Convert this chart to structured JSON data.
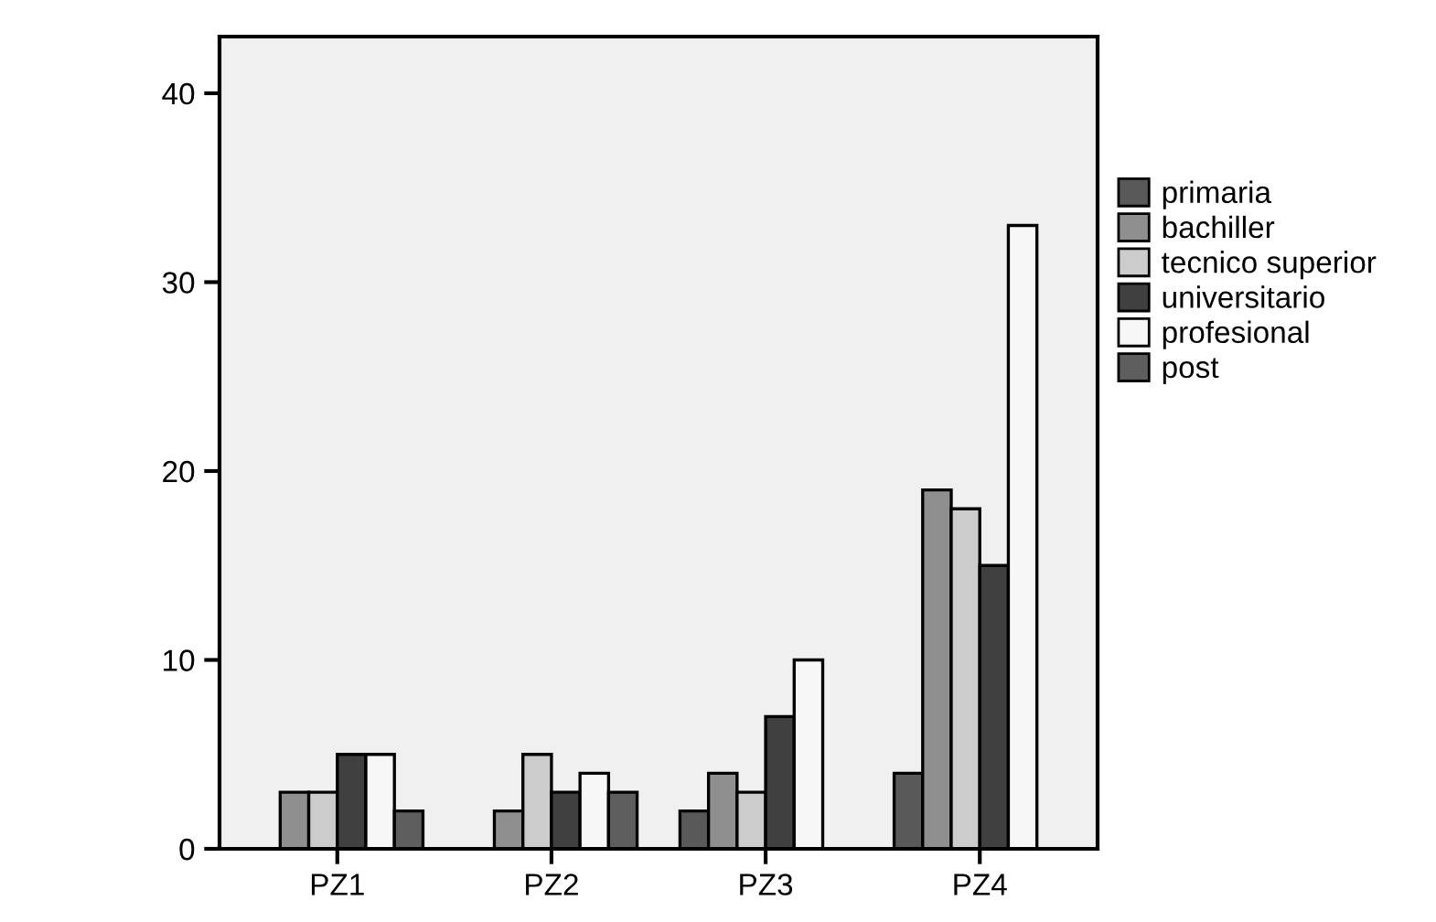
{
  "chart_data": {
    "type": "bar",
    "categories": [
      "PZ1",
      "PZ2",
      "PZ3",
      "PZ4"
    ],
    "series": [
      {
        "name": "primaria",
        "color": "#595959",
        "values": [
          0,
          0,
          2,
          4
        ]
      },
      {
        "name": "bachiller",
        "color": "#8f8f8f",
        "values": [
          3,
          2,
          4,
          19
        ]
      },
      {
        "name": "tecnico superior",
        "color": "#cccccc",
        "values": [
          3,
          5,
          3,
          18
        ]
      },
      {
        "name": "universitario",
        "color": "#404040",
        "values": [
          5,
          3,
          7,
          15
        ]
      },
      {
        "name": "profesional",
        "color": "#f7f7f7",
        "values": [
          5,
          4,
          10,
          33
        ]
      },
      {
        "name": "post",
        "color": "#5e5e5e",
        "values": [
          2,
          3,
          0,
          0
        ]
      }
    ],
    "ylim": [
      0,
      43
    ],
    "yticks": [
      0,
      10,
      20,
      30,
      40
    ],
    "grid": false,
    "legend": "right"
  }
}
